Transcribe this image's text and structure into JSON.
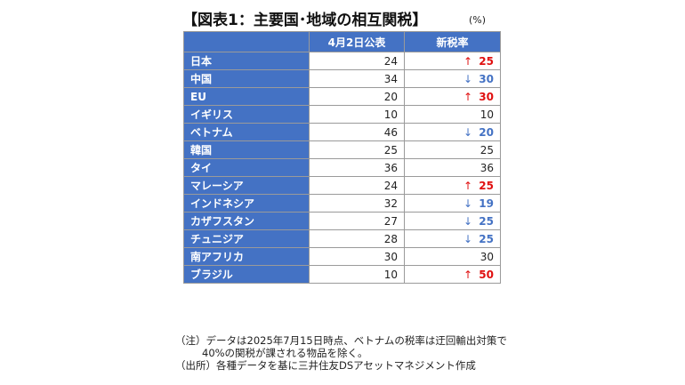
{
  "title": "【図表1：主要国･地域の相互関税】",
  "unit": "(%)",
  "chart_data": {
    "type": "table",
    "columns": [
      "",
      "4月2日公表",
      "新税率"
    ],
    "rows": [
      {
        "country": "日本",
        "announced": 24,
        "new_rate": 25,
        "change": "up"
      },
      {
        "country": "中国",
        "announced": 34,
        "new_rate": 30,
        "change": "down"
      },
      {
        "country": "EU",
        "announced": 20,
        "new_rate": 30,
        "change": "up"
      },
      {
        "country": "イギリス",
        "announced": 10,
        "new_rate": 10,
        "change": "none"
      },
      {
        "country": "ベトナム",
        "announced": 46,
        "new_rate": 20,
        "change": "down"
      },
      {
        "country": "韓国",
        "announced": 25,
        "new_rate": 25,
        "change": "none"
      },
      {
        "country": "タイ",
        "announced": 36,
        "new_rate": 36,
        "change": "none"
      },
      {
        "country": "マレーシア",
        "announced": 24,
        "new_rate": 25,
        "change": "up"
      },
      {
        "country": "インドネシア",
        "announced": 32,
        "new_rate": 19,
        "change": "down"
      },
      {
        "country": "カザフスタン",
        "announced": 27,
        "new_rate": 25,
        "change": "down"
      },
      {
        "country": "チュニジア",
        "announced": 28,
        "new_rate": 25,
        "change": "down"
      },
      {
        "country": "南アフリカ",
        "announced": 30,
        "new_rate": 30,
        "change": "none"
      },
      {
        "country": "ブラジル",
        "announced": 10,
        "new_rate": 50,
        "change": "up"
      }
    ]
  },
  "colors": {
    "header": "#4472c4",
    "up": "#e01010",
    "down": "#4472c4"
  },
  "arrows": {
    "up": "↑",
    "down": "↓"
  },
  "notes": {
    "line1": "（注）データは2025年7月15日時点、ベトナムの税率は迂回輸出対策で",
    "line2": "40%の関税が課される物品を除く。",
    "line3": "（出所）各種データを基に三井住友DSアセットマネジメント作成"
  }
}
